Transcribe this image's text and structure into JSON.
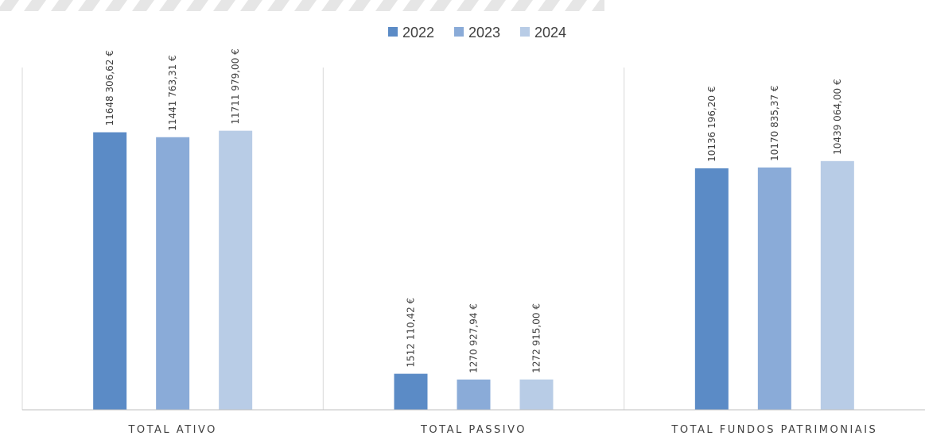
{
  "chart_data": {
    "type": "bar",
    "categories": [
      "TOTAL ATIVO",
      "TOTAL PASSIVO",
      "TOTAL FUNDOS PATRIMONIAIS"
    ],
    "series": [
      {
        "name": "2022",
        "color": "#5b8bc6",
        "values": [
          11648306.62,
          1512110.42,
          10136196.2
        ],
        "labels": [
          "11648 306,62 €",
          "1512 110,42 €",
          "10136 196,20 €"
        ]
      },
      {
        "name": "2023",
        "color": "#8aabd8",
        "values": [
          11441763.31,
          1270927.94,
          10170835.37
        ],
        "labels": [
          "11441 763,31 €",
          "1270 927,94 €",
          "10170 835,37 €"
        ]
      },
      {
        "name": "2024",
        "color": "#b8cce6",
        "values": [
          11711979.0,
          1272915.0,
          10439064.0
        ],
        "labels": [
          "11711 979,00 €",
          "1272 915,00 €",
          "10439 064,00 €"
        ]
      }
    ],
    "title": "",
    "xlabel": "",
    "ylabel": "",
    "ylim": [
      0,
      12000000
    ],
    "grid": false,
    "category_separators": true,
    "legend_position": "top-center"
  }
}
